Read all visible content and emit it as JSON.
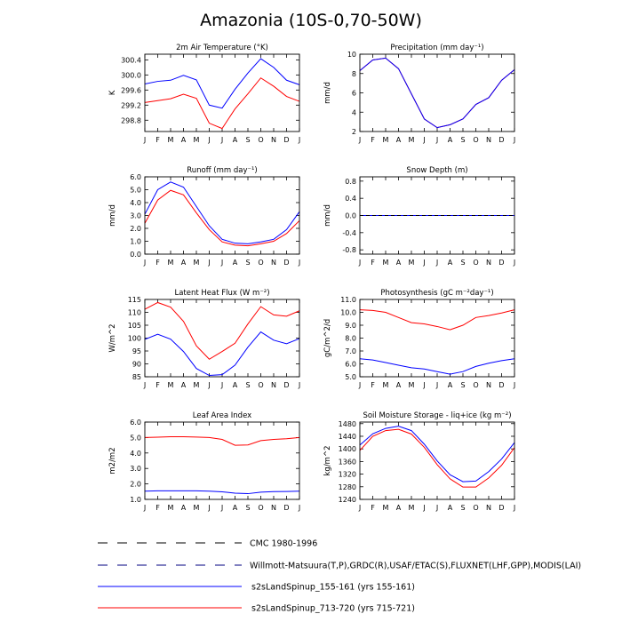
{
  "title": "Amazonia (10S-0,70-50W)",
  "colors": {
    "blue": "#0000ff",
    "red": "#ff0000",
    "black": "#000000",
    "dash_blue": "#000080"
  },
  "chart_data": [
    {
      "type": "line",
      "title": "2m Air Temperature (°K)",
      "ylabel": "K",
      "ylim": [
        298.5,
        300.55
      ],
      "yticks": [
        "298.8",
        "299.2",
        "299.6",
        "300.0",
        "300.4"
      ],
      "categories": [
        "J",
        "F",
        "M",
        "A",
        "M",
        "J",
        "J",
        "A",
        "S",
        "O",
        "N",
        "D",
        "J"
      ],
      "series": [
        {
          "name": "s2sLandSpinup_155-161 (yrs 155-161)",
          "color": "blue",
          "values": [
            299.76,
            299.83,
            299.86,
            299.99,
            299.87,
            299.2,
            299.12,
            299.62,
            300.05,
            300.43,
            300.2,
            299.86,
            299.74
          ]
        },
        {
          "name": "s2sLandSpinup_713-720 (yrs 715-721)",
          "color": "red",
          "values": [
            299.27,
            299.32,
            299.37,
            299.49,
            299.38,
            298.72,
            298.58,
            299.1,
            299.5,
            299.92,
            299.7,
            299.43,
            299.3
          ]
        }
      ]
    },
    {
      "type": "line",
      "title": "Precipitation (mm day⁻¹)",
      "ylabel": "mm/d",
      "ylim": [
        2,
        10
      ],
      "yticks": [
        "2",
        "4",
        "6",
        "8",
        "10"
      ],
      "categories": [
        "J",
        "F",
        "M",
        "A",
        "M",
        "J",
        "J",
        "A",
        "S",
        "O",
        "N",
        "D",
        "J"
      ],
      "series": [
        {
          "name": "s2sLandSpinup_713-720 (yrs 715-721)",
          "color": "red",
          "values": [
            8.3,
            9.4,
            9.6,
            8.5,
            5.9,
            3.3,
            2.4,
            2.7,
            3.3,
            4.8,
            5.5,
            7.3,
            8.4
          ]
        },
        {
          "name": "s2sLandSpinup_155-161 (yrs 155-161)",
          "color": "blue",
          "values": [
            8.3,
            9.4,
            9.6,
            8.5,
            5.9,
            3.3,
            2.4,
            2.7,
            3.3,
            4.8,
            5.5,
            7.3,
            8.4
          ]
        }
      ]
    },
    {
      "type": "line",
      "title": "Runoff (mm day⁻¹)",
      "ylabel": "mm/d",
      "ylim": [
        0,
        6
      ],
      "yticks": [
        "0.0",
        "1.0",
        "2.0",
        "3.0",
        "4.0",
        "5.0",
        "6.0"
      ],
      "categories": [
        "J",
        "F",
        "M",
        "A",
        "M",
        "J",
        "J",
        "A",
        "S",
        "O",
        "N",
        "D",
        "J"
      ],
      "series": [
        {
          "name": "s2sLandSpinup_155-161 (yrs 155-161)",
          "color": "blue",
          "values": [
            3.1,
            5.0,
            5.6,
            5.2,
            3.7,
            2.2,
            1.15,
            0.85,
            0.8,
            0.95,
            1.15,
            1.9,
            3.3
          ]
        },
        {
          "name": "s2sLandSpinup_713-720 (yrs 715-721)",
          "color": "red",
          "values": [
            2.4,
            4.2,
            4.95,
            4.6,
            3.2,
            1.9,
            0.95,
            0.7,
            0.65,
            0.8,
            1.0,
            1.6,
            2.6
          ]
        }
      ]
    },
    {
      "type": "line",
      "title": "Snow Depth (m)",
      "ylabel": "mm/d",
      "ylim": [
        -0.9,
        0.9
      ],
      "yticks": [
        "-0.8",
        "-0.4",
        "0.0",
        "0.4",
        "0.8"
      ],
      "categories": [
        "J",
        "F",
        "M",
        "A",
        "M",
        "J",
        "J",
        "A",
        "S",
        "O",
        "N",
        "D",
        "J"
      ],
      "series": [
        {
          "name": "s2sLandSpinup_713-720 (yrs 715-721)",
          "color": "red",
          "values": [
            0,
            0,
            0,
            0,
            0,
            0,
            0,
            0,
            0,
            0,
            0,
            0,
            0
          ]
        },
        {
          "name": "s2sLandSpinup_155-161 (yrs 155-161)",
          "color": "blue",
          "values": [
            0,
            0,
            0,
            0,
            0,
            0,
            0,
            0,
            0,
            0,
            0,
            0,
            0
          ]
        },
        {
          "name": "CMC 1980-1996",
          "color": "black",
          "dashed": true,
          "values": [
            0,
            0,
            0,
            0,
            0,
            0,
            0,
            0,
            0,
            0,
            0,
            0,
            0
          ]
        }
      ]
    },
    {
      "type": "line",
      "title": "Latent Heat Flux (W m⁻²)",
      "ylabel": "W/m^2",
      "ylim": [
        85,
        115
      ],
      "yticks": [
        "85",
        "90",
        "95",
        "100",
        "105",
        "110",
        "115"
      ],
      "categories": [
        "J",
        "F",
        "M",
        "A",
        "M",
        "J",
        "J",
        "A",
        "S",
        "O",
        "N",
        "D",
        "J"
      ],
      "series": [
        {
          "name": "s2sLandSpinup_155-161 (yrs 155-161)",
          "color": "blue",
          "values": [
            99.5,
            101.5,
            99.6,
            94.8,
            88.2,
            85.5,
            85.8,
            89.5,
            96.5,
            102.4,
            99.2,
            97.8,
            99.8
          ]
        },
        {
          "name": "s2sLandSpinup_713-720 (yrs 715-721)",
          "color": "red",
          "values": [
            111.2,
            113.8,
            112.0,
            106.5,
            97.0,
            91.8,
            94.8,
            98.0,
            105.5,
            112.2,
            109.0,
            108.5,
            110.6
          ]
        }
      ]
    },
    {
      "type": "line",
      "title": "Photosynthesis (gC m⁻²day⁻¹)",
      "ylabel": "gC/m^2/d",
      "ylim": [
        5,
        11
      ],
      "yticks": [
        "5.0",
        "6.0",
        "7.0",
        "8.0",
        "9.0",
        "10.0",
        "11.0"
      ],
      "categories": [
        "J",
        "F",
        "M",
        "A",
        "M",
        "J",
        "J",
        "A",
        "S",
        "O",
        "N",
        "D",
        "J"
      ],
      "series": [
        {
          "name": "s2sLandSpinup_713-720 (yrs 715-721)",
          "color": "red",
          "values": [
            10.2,
            10.15,
            10.0,
            9.6,
            9.2,
            9.1,
            8.9,
            8.65,
            9.0,
            9.6,
            9.75,
            9.95,
            10.2
          ]
        },
        {
          "name": "s2sLandSpinup_155-161 (yrs 155-161)",
          "color": "blue",
          "values": [
            6.4,
            6.3,
            6.1,
            5.9,
            5.7,
            5.6,
            5.4,
            5.2,
            5.4,
            5.8,
            6.05,
            6.25,
            6.4
          ]
        }
      ]
    },
    {
      "type": "line",
      "title": "Leaf Area Index",
      "ylabel": "m2/m2",
      "ylim": [
        1,
        6
      ],
      "yticks": [
        "1.0",
        "2.0",
        "3.0",
        "4.0",
        "5.0",
        "6.0"
      ],
      "categories": [
        "J",
        "F",
        "M",
        "A",
        "M",
        "J",
        "J",
        "A",
        "S",
        "O",
        "N",
        "D",
        "J"
      ],
      "series": [
        {
          "name": "s2sLandSpinup_713-720 (yrs 715-721)",
          "color": "red",
          "values": [
            5.0,
            5.02,
            5.05,
            5.05,
            5.03,
            5.0,
            4.88,
            4.5,
            4.52,
            4.8,
            4.88,
            4.92,
            5.0
          ]
        },
        {
          "name": "s2sLandSpinup_155-161 (yrs 155-161)",
          "color": "blue",
          "values": [
            1.53,
            1.55,
            1.55,
            1.55,
            1.55,
            1.53,
            1.49,
            1.4,
            1.37,
            1.47,
            1.5,
            1.51,
            1.53
          ]
        }
      ]
    },
    {
      "type": "line",
      "title": "Soil Moisture Storage - liq+ice (kg m⁻²)",
      "ylabel": "kg/m^2",
      "ylim": [
        1240,
        1485
      ],
      "yticks": [
        "1240",
        "1280",
        "1320",
        "1360",
        "1400",
        "1440",
        "1480"
      ],
      "categories": [
        "J",
        "F",
        "M",
        "A",
        "M",
        "J",
        "J",
        "A",
        "S",
        "O",
        "N",
        "D",
        "J"
      ],
      "series": [
        {
          "name": "s2sLandSpinup_155-161 (yrs 155-161)",
          "color": "blue",
          "values": [
            1412,
            1448,
            1465,
            1472,
            1458,
            1415,
            1362,
            1318,
            1296,
            1298,
            1328,
            1368,
            1420
          ]
        },
        {
          "name": "s2sLandSpinup_713-720 (yrs 715-721)",
          "color": "red",
          "values": [
            1395,
            1440,
            1458,
            1462,
            1447,
            1405,
            1350,
            1305,
            1279,
            1279,
            1308,
            1348,
            1404
          ]
        }
      ]
    }
  ],
  "legend": [
    {
      "label": "CMC 1980-1996",
      "style": "dashed",
      "color": "black"
    },
    {
      "label": "Willmott-Matsuura(T,P),GRDC(R),USAF/ETAC(S),FLUXNET(LHF,GPP),MODIS(LAI)",
      "style": "dashed",
      "color": "dash_blue"
    },
    {
      "label": "s2sLandSpinup_155-161 (yrs 155-161)",
      "style": "solid",
      "color": "blue"
    },
    {
      "label": "s2sLandSpinup_713-720 (yrs 715-721)",
      "style": "solid",
      "color": "red"
    }
  ]
}
